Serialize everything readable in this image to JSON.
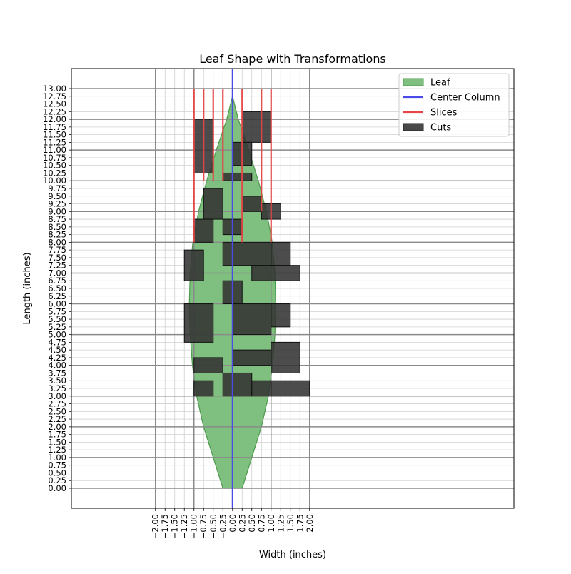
{
  "chart_data": {
    "type": "area",
    "title": "Leaf Shape with Transformations",
    "xlabel": "Width (inches)",
    "ylabel": "Length (inches)",
    "xlim": [
      -4.18,
      7.3
    ],
    "ylim": [
      -0.65,
      13.65
    ],
    "grid": true,
    "legend_position": "upper right",
    "x_ticks": [
      -2.0,
      -1.75,
      -1.5,
      -1.25,
      -1.0,
      -0.75,
      -0.5,
      -0.25,
      0.0,
      0.25,
      0.5,
      0.75,
      1.0,
      1.25,
      1.5,
      1.75,
      2.0
    ],
    "x_tick_labels": [
      "−2.00",
      "−1.75",
      "−1.50",
      "−1.25",
      "−1.00",
      "−0.75",
      "−0.50",
      "−0.25",
      "0.00",
      "0.25",
      "0.50",
      "0.75",
      "1.00",
      "1.25",
      "1.50",
      "1.75",
      "2.00"
    ],
    "y_ticks": [
      0,
      0.25,
      0.5,
      0.75,
      1.0,
      1.25,
      1.5,
      1.75,
      2.0,
      2.25,
      2.5,
      2.75,
      3.0,
      3.25,
      3.5,
      3.75,
      4.0,
      4.25,
      4.5,
      4.75,
      5.0,
      5.25,
      5.5,
      5.75,
      6.0,
      6.25,
      6.5,
      6.75,
      7.0,
      7.25,
      7.5,
      7.75,
      8.0,
      8.25,
      8.5,
      8.75,
      9.0,
      9.25,
      9.5,
      9.75,
      10.0,
      10.25,
      10.5,
      10.75,
      11.0,
      11.25,
      11.5,
      11.75,
      12.0,
      12.25,
      12.5,
      12.75,
      13.0
    ],
    "y_tick_labels": [
      "0.00",
      "0.25",
      "0.50",
      "0.75",
      "1.00",
      "1.25",
      "1.50",
      "1.75",
      "2.00",
      "2.25",
      "2.50",
      "2.75",
      "3.00",
      "3.25",
      "3.50",
      "3.75",
      "4.00",
      "4.25",
      "4.50",
      "4.75",
      "5.00",
      "5.25",
      "5.50",
      "5.75",
      "6.00",
      "6.25",
      "6.50",
      "6.75",
      "7.00",
      "7.25",
      "7.50",
      "7.75",
      "8.00",
      "8.25",
      "8.50",
      "8.75",
      "9.00",
      "9.25",
      "9.50",
      "9.75",
      "10.00",
      "10.25",
      "10.50",
      "10.75",
      "11.00",
      "11.25",
      "11.50",
      "11.75",
      "12.00",
      "12.25",
      "12.50",
      "12.75",
      "13.00"
    ],
    "major_gridlines_x": [
      -2,
      -1,
      0,
      1,
      2
    ],
    "major_gridlines_y": [
      0,
      1,
      2,
      3,
      4,
      5,
      6,
      7,
      8,
      9,
      10,
      11,
      12,
      13
    ],
    "legend": [
      {
        "label": "Leaf",
        "kind": "patch",
        "color": "#7fbf7f",
        "edge": "#4c9a4c"
      },
      {
        "label": "Center Column",
        "kind": "line",
        "color": "#4a4ae6"
      },
      {
        "label": "Slices",
        "kind": "line",
        "color": "#e64545"
      },
      {
        "label": "Cuts",
        "kind": "patch",
        "color": "#484848",
        "edge": "#222222"
      }
    ],
    "series": [
      {
        "name": "Leaf",
        "type": "area",
        "color": "#7fbf7f",
        "edge_color": "#4c9a4c",
        "outline": [
          [
            -0.25,
            0.0
          ],
          [
            -0.5,
            1.0
          ],
          [
            -0.75,
            2.0
          ],
          [
            -0.93,
            3.0
          ],
          [
            -1.04,
            4.0
          ],
          [
            -1.1,
            5.0
          ],
          [
            -1.12,
            6.0
          ],
          [
            -1.1,
            7.0
          ],
          [
            -1.03,
            8.0
          ],
          [
            -0.88,
            9.0
          ],
          [
            -0.67,
            10.0
          ],
          [
            -0.42,
            11.0
          ],
          [
            -0.15,
            12.0
          ],
          [
            0.0,
            12.75
          ],
          [
            0.15,
            12.0
          ],
          [
            0.42,
            11.0
          ],
          [
            0.67,
            10.0
          ],
          [
            0.88,
            9.0
          ],
          [
            1.03,
            8.0
          ],
          [
            1.1,
            7.0
          ],
          [
            1.12,
            6.0
          ],
          [
            1.1,
            5.0
          ],
          [
            1.04,
            4.0
          ],
          [
            0.93,
            3.0
          ],
          [
            0.75,
            2.0
          ],
          [
            0.5,
            1.0
          ],
          [
            0.25,
            0.0
          ]
        ]
      },
      {
        "name": "Center Column",
        "type": "line",
        "color": "#4a4ae6",
        "points": [
          [
            0.0,
            -0.65
          ],
          [
            0.0,
            13.65
          ]
        ]
      },
      {
        "name": "Slices",
        "type": "segments",
        "color": "#e64545",
        "segments": [
          {
            "x": -1.0,
            "y": [
              8.0,
              13.0
            ]
          },
          {
            "x": -0.75,
            "y": [
              10.0,
              13.0
            ]
          },
          {
            "x": -0.5,
            "y": [
              10.0,
              13.0
            ]
          },
          {
            "x": -0.25,
            "y": [
              10.0,
              13.0
            ]
          },
          {
            "x": 0.25,
            "y": [
              8.0,
              13.0
            ]
          },
          {
            "x": 0.75,
            "y": [
              9.0,
              13.0
            ]
          },
          {
            "x": 1.0,
            "y": [
              8.0,
              13.0
            ]
          }
        ]
      },
      {
        "name": "Cuts",
        "type": "rects",
        "color": "#333333",
        "edge_color": "#111111",
        "opacity": 0.88,
        "rects": [
          {
            "x": -1.0,
            "y": 10.25,
            "w": 0.5,
            "h": 1.75
          },
          {
            "x": 0.25,
            "y": 11.25,
            "w": 0.75,
            "h": 1.0
          },
          {
            "x": 0.0,
            "y": 10.5,
            "w": 0.5,
            "h": 0.75
          },
          {
            "x": -0.25,
            "y": 10.0,
            "w": 0.75,
            "h": 0.25
          },
          {
            "x": -0.75,
            "y": 8.75,
            "w": 0.5,
            "h": 1.0
          },
          {
            "x": 0.25,
            "y": 9.0,
            "w": 0.5,
            "h": 0.5
          },
          {
            "x": 0.75,
            "y": 8.75,
            "w": 0.5,
            "h": 0.5
          },
          {
            "x": -1.0,
            "y": 8.0,
            "w": 0.5,
            "h": 0.75
          },
          {
            "x": -0.25,
            "y": 8.25,
            "w": 0.5,
            "h": 0.5
          },
          {
            "x": -1.25,
            "y": 6.75,
            "w": 0.5,
            "h": 1.0
          },
          {
            "x": -0.25,
            "y": 7.25,
            "w": 1.25,
            "h": 0.75
          },
          {
            "x": 1.0,
            "y": 7.25,
            "w": 0.5,
            "h": 0.75
          },
          {
            "x": 0.5,
            "y": 6.75,
            "w": 1.25,
            "h": 0.5
          },
          {
            "x": -0.25,
            "y": 6.0,
            "w": 0.5,
            "h": 0.75
          },
          {
            "x": -1.25,
            "y": 4.75,
            "w": 0.75,
            "h": 1.25
          },
          {
            "x": 0.0,
            "y": 5.0,
            "w": 1.0,
            "h": 1.0
          },
          {
            "x": 1.0,
            "y": 5.25,
            "w": 0.5,
            "h": 0.75
          },
          {
            "x": 1.0,
            "y": 3.75,
            "w": 0.75,
            "h": 1.0
          },
          {
            "x": 0.0,
            "y": 4.0,
            "w": 1.0,
            "h": 0.5
          },
          {
            "x": -1.0,
            "y": 3.75,
            "w": 0.75,
            "h": 0.5
          },
          {
            "x": -1.0,
            "y": 3.0,
            "w": 0.5,
            "h": 0.5
          },
          {
            "x": -0.25,
            "y": 3.0,
            "w": 0.75,
            "h": 0.75
          },
          {
            "x": 0.5,
            "y": 3.0,
            "w": 0.5,
            "h": 0.5
          },
          {
            "x": 1.0,
            "y": 3.0,
            "w": 1.0,
            "h": 0.5
          }
        ]
      }
    ]
  }
}
